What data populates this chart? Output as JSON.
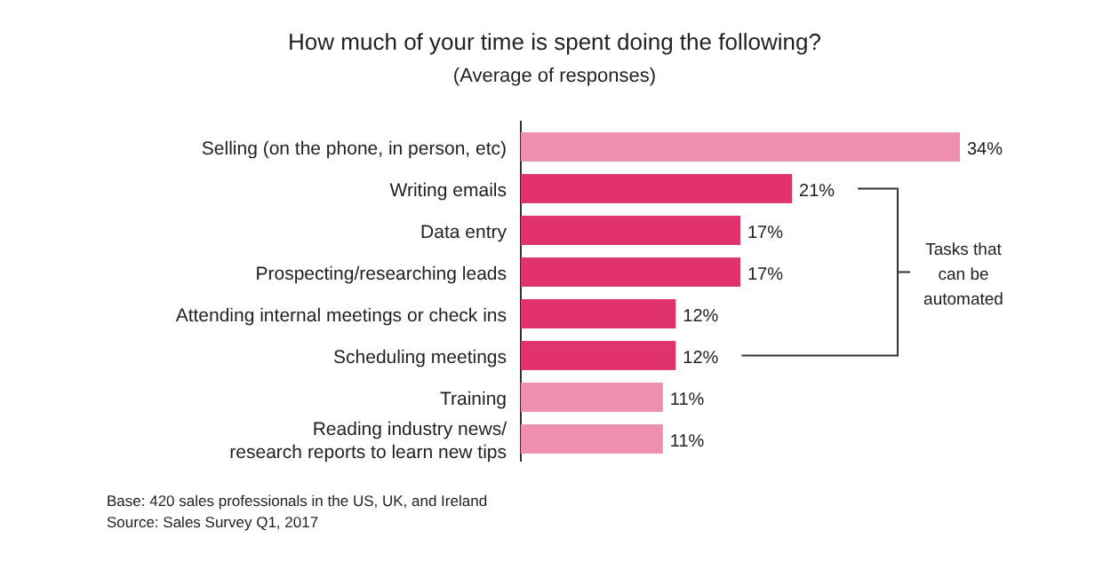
{
  "chart_data": {
    "type": "bar",
    "orientation": "horizontal",
    "title": "How much of your time is spent doing the following?",
    "subtitle": "(Average of responses)",
    "categories": [
      "Selling (on the phone, in person, etc)",
      "Writing emails",
      "Data entry",
      "Prospecting/researching leads",
      "Attending internal meetings or check ins",
      "Scheduling meetings",
      "Training",
      "Reading industry news/ research reports to learn new tips"
    ],
    "values": [
      34,
      21,
      17,
      17,
      12,
      12,
      11,
      11
    ],
    "colors": [
      "#ee8fb0",
      "#e0336b",
      "#e0336b",
      "#e0336b",
      "#e0336b",
      "#e0336b",
      "#ee8fb0",
      "#ee8fb0"
    ],
    "value_labels": [
      "34%",
      "21%",
      "17%",
      "17%",
      "12%",
      "12%",
      "11%",
      "11%"
    ],
    "xlim": [
      0,
      34
    ],
    "tick_labels": "y",
    "annotations": [
      "Tasks that can be automated",
      "Base: 420 sales professionals in the US, UK, and Ireland",
      "Source: Sales Survey Q1, 2017"
    ]
  }
}
